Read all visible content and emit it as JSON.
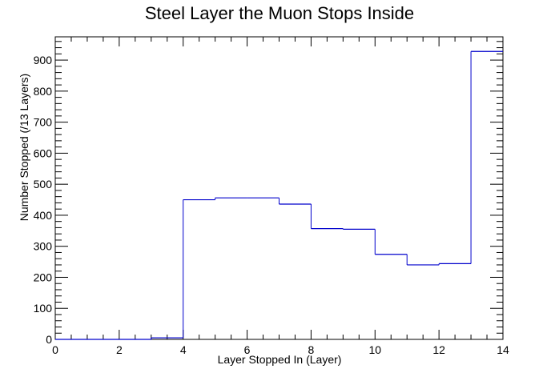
{
  "chart_data": {
    "type": "bar",
    "style": "step-histogram",
    "title": "Steel Layer the Muon Stops Inside",
    "xlabel": "Layer Stopped In (Layer)",
    "ylabel": "Number Stopped (/13 Layers)",
    "xlim": [
      0,
      14
    ],
    "ylim": [
      0,
      975
    ],
    "x_ticks": [
      0,
      2,
      4,
      6,
      8,
      10,
      12,
      14
    ],
    "y_ticks": [
      0,
      100,
      200,
      300,
      400,
      500,
      600,
      700,
      800,
      900
    ],
    "bins": [
      {
        "x0": 0,
        "x1": 1,
        "value": 0
      },
      {
        "x0": 1,
        "x1": 2,
        "value": 0
      },
      {
        "x0": 2,
        "x1": 3,
        "value": 0
      },
      {
        "x0": 3,
        "x1": 4,
        "value": 5
      },
      {
        "x0": 4,
        "x1": 5,
        "value": 450
      },
      {
        "x0": 5,
        "x1": 6,
        "value": 456
      },
      {
        "x0": 6,
        "x1": 7,
        "value": 456
      },
      {
        "x0": 7,
        "x1": 8,
        "value": 436
      },
      {
        "x0": 8,
        "x1": 9,
        "value": 357
      },
      {
        "x0": 9,
        "x1": 10,
        "value": 355
      },
      {
        "x0": 10,
        "x1": 11,
        "value": 274
      },
      {
        "x0": 11,
        "x1": 12,
        "value": 240
      },
      {
        "x0": 12,
        "x1": 13,
        "value": 244
      },
      {
        "x0": 13,
        "x1": 14,
        "value": 928
      }
    ],
    "line_color": "#0000cc",
    "grid": false,
    "legend": "none"
  }
}
